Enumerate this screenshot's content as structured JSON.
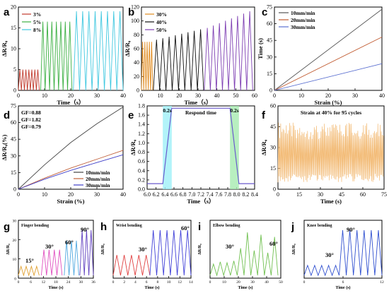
{
  "chart_data": [
    {
      "id": "a",
      "type": "line",
      "panel_label": "a",
      "xlabel": "Time（s）",
      "ylabel": "ΔR/R₀",
      "xlim": [
        0,
        40
      ],
      "ylim": [
        0,
        20
      ],
      "xticks": [
        "0",
        "10",
        "20",
        "30",
        "40"
      ],
      "yticks": [
        "0",
        "5",
        "10",
        "15",
        "20"
      ],
      "series": [
        {
          "name": "3%",
          "color": "#c0392b",
          "t0": 0,
          "t1": 8,
          "low": 0,
          "high": 5,
          "cycles": 7
        },
        {
          "name": "5%",
          "color": "#3cb043",
          "t0": 8.5,
          "t1": 20.5,
          "low": 0,
          "high": 16.5,
          "cycles": 7
        },
        {
          "name": "8%",
          "color": "#40c8e0",
          "t0": 21,
          "t1": 40,
          "low": 0,
          "high": 19,
          "cycles": 8
        }
      ]
    },
    {
      "id": "b",
      "type": "line",
      "panel_label": "b",
      "xlabel": "Time（s）",
      "ylabel": "ΔR/R₀",
      "xlim": [
        0,
        60
      ],
      "ylim": [
        0,
        120
      ],
      "xticks": [
        "0",
        "10",
        "20",
        "30",
        "40",
        "50",
        "60"
      ],
      "yticks": [
        "0",
        "20",
        "40",
        "60",
        "80",
        "100",
        "120"
      ],
      "series": [
        {
          "name": "30%",
          "color": "#e08a1e",
          "t0": 0,
          "t1": 6,
          "low": 0,
          "high": 70,
          "cycles": 5
        },
        {
          "name": "40%",
          "color": "#111111",
          "t0": 6.3,
          "t1": 33,
          "low": 0,
          "high_start": 73,
          "high_end": 88,
          "cycles": 8
        },
        {
          "name": "50%",
          "color": "#7e3fb3",
          "t0": 33.3,
          "t1": 59,
          "low": 0,
          "high_start": 90,
          "high_end": 114,
          "cycles": 8
        }
      ]
    },
    {
      "id": "c",
      "type": "line",
      "panel_label": "c",
      "xlabel": "Strain (%)",
      "ylabel": "Time (s)",
      "xlim": [
        0,
        40
      ],
      "ylim": [
        0,
        75
      ],
      "xticks": [
        "0",
        "10",
        "20",
        "30",
        "40"
      ],
      "yticks": [
        "0",
        "15",
        "30",
        "45",
        "60",
        "75"
      ],
      "series": [
        {
          "name": "10mm/min",
          "color": "#555555",
          "x": [
            0,
            40
          ],
          "y": [
            0,
            73
          ]
        },
        {
          "name": "20mm/min",
          "color": "#c05a30",
          "x": [
            0,
            40
          ],
          "y": [
            0,
            48
          ]
        },
        {
          "name": "30mm/min",
          "color": "#5a6fd0",
          "x": [
            0,
            40
          ],
          "y": [
            0,
            24
          ]
        }
      ]
    },
    {
      "id": "d",
      "type": "line",
      "panel_label": "d",
      "xlabel": "Strain (%)",
      "ylabel": "ΔR/R₀(%)",
      "xlim": [
        0,
        40
      ],
      "ylim": [
        0,
        75
      ],
      "xticks": [
        "0",
        "10",
        "20",
        "30",
        "40"
      ],
      "yticks": [
        "0",
        "15",
        "30",
        "45",
        "60",
        "75"
      ],
      "annotations": [
        {
          "text": "GF=0.88",
          "color": "#d95a2a"
        },
        {
          "text": "GF=1.82",
          "color": "#000000"
        },
        {
          "text": "GF=0.79",
          "color": "#3a55d0"
        }
      ],
      "series": [
        {
          "name": "10mm/min",
          "color": "#444444",
          "x": [
            0,
            10,
            20,
            30,
            40
          ],
          "y": [
            0,
            22,
            42,
            59,
            74
          ]
        },
        {
          "name": "20mm/min",
          "color": "#c0603a",
          "x": [
            0,
            10,
            20,
            30,
            40
          ],
          "y": [
            0,
            10,
            19,
            27,
            35
          ]
        },
        {
          "name": "30mm/min",
          "color": "#3e3ec8",
          "x": [
            0,
            10,
            20,
            30,
            40
          ],
          "y": [
            0,
            9,
            17,
            24,
            31
          ]
        }
      ]
    },
    {
      "id": "e",
      "type": "line",
      "panel_label": "e",
      "xlabel": "Time（s）",
      "ylabel": "ΔR/R₀",
      "xlim": [
        6.0,
        8.4
      ],
      "ylim": [
        0,
        1.8
      ],
      "xticks": [
        "6.0",
        "6.2",
        "6.4",
        "6.6",
        "6.8",
        "7.0",
        "7.2",
        "7.4",
        "7.6",
        "7.8",
        "8.0",
        "8.2",
        "8.4"
      ],
      "yticks": [
        "0.0",
        "0.2",
        "0.4",
        "0.6",
        "0.8",
        "1.0",
        "1.2",
        "1.4",
        "1.6",
        "1.8"
      ],
      "annotations": [
        {
          "text": "0.2s",
          "color": "#000000"
        },
        {
          "text": "Respond time",
          "color": "#000000"
        },
        {
          "text": "0.2s",
          "color": "#000000"
        }
      ],
      "series": [
        {
          "name": "",
          "color": "#6a5acd",
          "x": [
            6.0,
            6.35,
            6.55,
            7.85,
            8.05,
            8.4
          ],
          "y": [
            0.12,
            0.12,
            1.75,
            1.75,
            0.12,
            0.12
          ]
        }
      ]
    },
    {
      "id": "f",
      "type": "line",
      "panel_label": "f",
      "xlabel": "Time (s)",
      "ylabel": "ΔR/R₀",
      "xlim": [
        0,
        75
      ],
      "ylim": [
        0,
        60
      ],
      "xticks": [
        "0",
        "15",
        "30",
        "45",
        "60",
        "75"
      ],
      "yticks": [
        "0",
        "15",
        "30",
        "45",
        "60"
      ],
      "annotations": [
        {
          "text": "Strain at 40% for 95 cycles",
          "color": "#2233cc"
        }
      ],
      "series": [
        {
          "name": "",
          "color": "#f2b870",
          "cycles": 95,
          "low": 5,
          "high": 48
        }
      ]
    },
    {
      "id": "g",
      "type": "line",
      "panel_label": "g",
      "title": "Finger bending",
      "xlabel": "Time (s)",
      "ylabel": "ΔR/R₀",
      "xlim": [
        0,
        36
      ],
      "xticks": [
        "0",
        "6",
        "12",
        "18",
        "24",
        "30",
        "36"
      ],
      "yticks": [
        "0",
        "10",
        "20",
        "30"
      ],
      "annotations": [
        {
          "text": "15°"
        },
        {
          "text": "30°"
        },
        {
          "text": "60°"
        },
        {
          "text": "90°"
        }
      ],
      "series": [
        {
          "name": "15°",
          "color": "#e0a030",
          "t0": 0,
          "t1": 10,
          "high": 6,
          "cycles": 4
        },
        {
          "name": "30°",
          "color": "#e050c0",
          "t0": 11,
          "t1": 21,
          "high": 17,
          "cycles": 4
        },
        {
          "name": "60°",
          "color": "#50a8e0",
          "t0": 22,
          "t1": 29,
          "high": 23,
          "cycles": 3
        },
        {
          "name": "90°",
          "color": "#6040c0",
          "t0": 29.5,
          "t1": 36,
          "high": 30,
          "cycles": 3
        }
      ]
    },
    {
      "id": "h",
      "type": "line",
      "panel_label": "h",
      "title": "Wrist bending",
      "xlabel": "Time (s)",
      "ylabel": "ΔR/R₀",
      "xlim": [
        0,
        14
      ],
      "xticks": [
        "0",
        "2",
        "4",
        "6",
        "8",
        "10",
        "12",
        "14"
      ],
      "annotations": [
        {
          "text": "30°"
        },
        {
          "text": "60°"
        }
      ],
      "series": [
        {
          "name": "30°",
          "color": "#e04040",
          "t0": 0,
          "t1": 6.6,
          "high": 0.45,
          "cycles": 5
        },
        {
          "name": "60°",
          "color": "#4040d8",
          "t0": 6.6,
          "t1": 14,
          "high": 1.0,
          "cycles": 6
        }
      ]
    },
    {
      "id": "i",
      "type": "line",
      "panel_label": "i",
      "title": "Elbow bending",
      "xlabel": "Time (s)",
      "ylabel": "ΔR/R₀",
      "xlim": [
        0,
        50
      ],
      "xticks": [
        "0",
        "10",
        "20",
        "30",
        "40",
        "50"
      ],
      "annotations": [
        {
          "text": "30°"
        },
        {
          "text": "60°"
        }
      ],
      "series": [
        {
          "name": "",
          "color": "#70c050",
          "t0": 0,
          "t1": 48,
          "cycles": 10
        }
      ]
    },
    {
      "id": "j",
      "type": "line",
      "panel_label": "j",
      "title": "Knee bending",
      "xlabel": "Time (s)",
      "ylabel": "ΔR/R₀",
      "xlim": [
        0,
        12
      ],
      "xticks": [
        "0",
        "6",
        "12"
      ],
      "annotations": [
        {
          "text": "30°"
        },
        {
          "text": "90°"
        }
      ],
      "series": [
        {
          "name": "30°",
          "color": "#3050d0",
          "t0": 0,
          "t1": 5.4,
          "high": 0.22,
          "cycles": 5
        },
        {
          "name": "90°",
          "color": "#3050d0",
          "t0": 5.4,
          "t1": 12,
          "high": 1.0,
          "cycles": 6
        }
      ]
    }
  ]
}
